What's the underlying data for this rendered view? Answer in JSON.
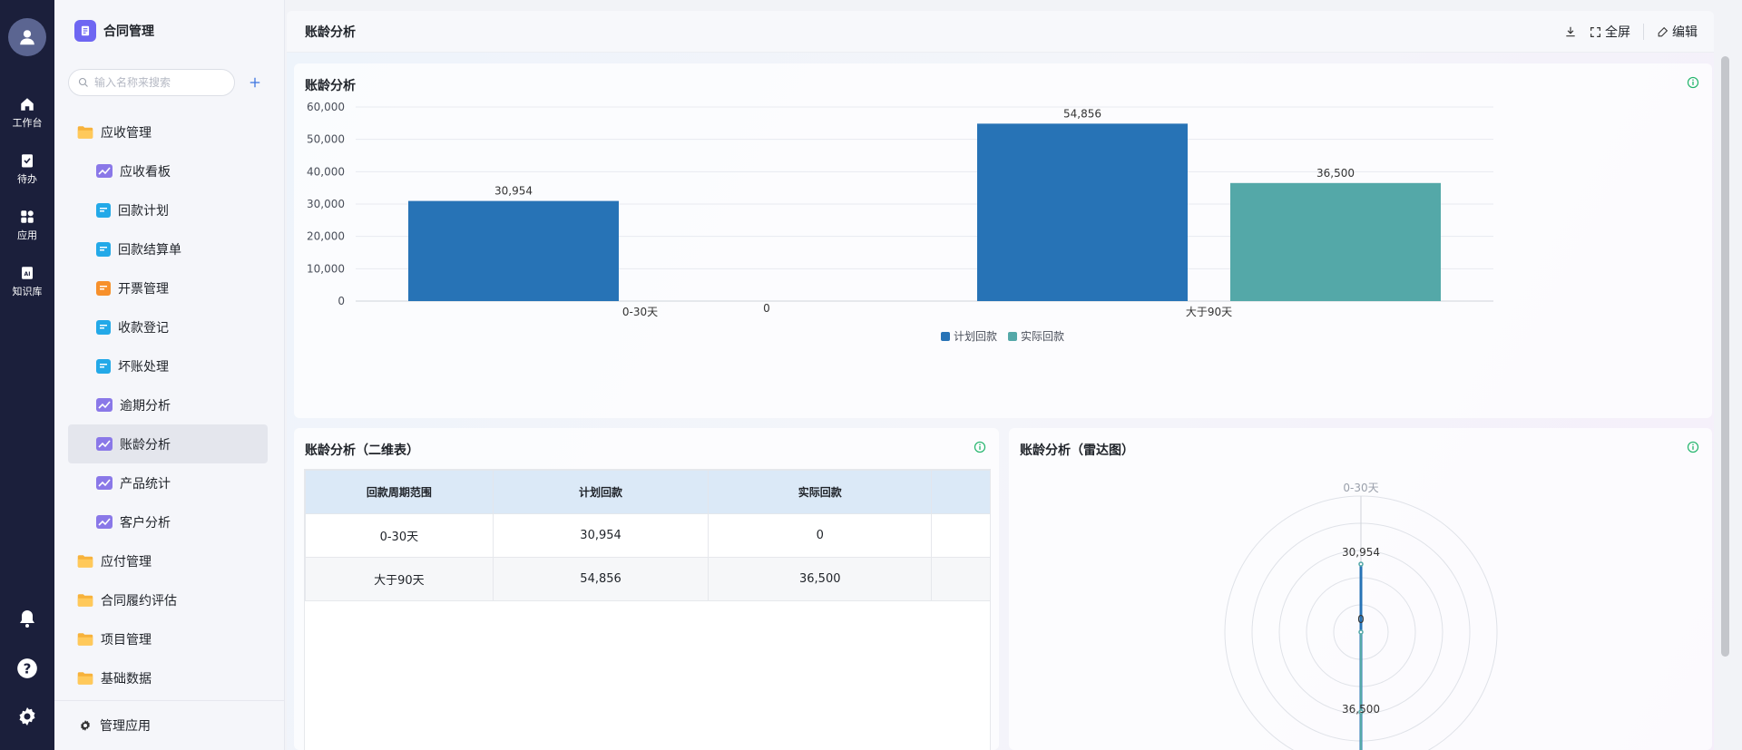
{
  "rail": {
    "items": [
      {
        "label": "工作台",
        "icon": "home-icon"
      },
      {
        "label": "待办",
        "icon": "clipboard-check-icon"
      },
      {
        "label": "应用",
        "icon": "apps-grid-icon"
      },
      {
        "label": "知识库",
        "icon": "ai-book-icon"
      }
    ],
    "bottom_icons": [
      "bell-icon",
      "help-icon",
      "gear-icon"
    ]
  },
  "sidebar": {
    "app_title": "合同管理",
    "search_placeholder": "输入名称来搜索",
    "menu": [
      {
        "type": "folder",
        "label": "应收管理"
      },
      {
        "type": "child",
        "label": "应收看板",
        "icon": "chart"
      },
      {
        "type": "child",
        "label": "回款计划",
        "icon": "form-blue"
      },
      {
        "type": "child",
        "label": "回款结算单",
        "icon": "form-blue"
      },
      {
        "type": "child",
        "label": "开票管理",
        "icon": "form-orange"
      },
      {
        "type": "child",
        "label": "收款登记",
        "icon": "form-blue"
      },
      {
        "type": "child",
        "label": "坏账处理",
        "icon": "form-blue"
      },
      {
        "type": "child",
        "label": "逾期分析",
        "icon": "chart"
      },
      {
        "type": "child",
        "label": "账龄分析",
        "icon": "chart",
        "active": true
      },
      {
        "type": "child",
        "label": "产品统计",
        "icon": "chart"
      },
      {
        "type": "child",
        "label": "客户分析",
        "icon": "chart"
      },
      {
        "type": "folder",
        "label": "应付管理"
      },
      {
        "type": "folder",
        "label": "合同履约评估"
      },
      {
        "type": "folder",
        "label": "项目管理"
      },
      {
        "type": "folder",
        "label": "基础数据"
      }
    ],
    "footer_label": "管理应用"
  },
  "topbar": {
    "title": "账龄分析",
    "fullscreen_label": "全屏",
    "edit_label": "编辑"
  },
  "cards": {
    "bar_title": "账龄分析",
    "table_title": "账龄分析（二维表）",
    "radar_title": "账龄分析（雷达图）"
  },
  "colors": {
    "planned": "#2773b6",
    "actual": "#54a8a8",
    "accent": "#6e66f2",
    "rail": "#1b1f3b",
    "info_green": "#20b46a"
  },
  "chart_data": [
    {
      "type": "bar",
      "title": "账龄分析",
      "categories": [
        "0-30天",
        "大于90天"
      ],
      "series": [
        {
          "name": "计划回款",
          "values": [
            30954,
            54856
          ]
        },
        {
          "name": "实际回款",
          "values": [
            0,
            36500
          ]
        }
      ],
      "ylim": [
        0,
        60000
      ],
      "yticks": [
        "0",
        "10,000",
        "20,000",
        "30,000",
        "40,000",
        "50,000",
        "60,000"
      ],
      "data_labels": [
        "30,954",
        "0",
        "54,856",
        "36,500"
      ],
      "legend": "bottom",
      "grid": true
    },
    {
      "type": "table",
      "title": "账龄分析（二维表）",
      "columns": [
        "回款周期范围",
        "计划回款",
        "实际回款",
        ""
      ],
      "rows": [
        [
          "0-30天",
          "30,954",
          "0",
          ""
        ],
        [
          "大于90天",
          "54,856",
          "36,500",
          ""
        ]
      ]
    },
    {
      "type": "radar",
      "title": "账龄分析（雷达图）",
      "indicators": [
        "0-30天"
      ],
      "labels": [
        "30,954",
        "0",
        "36,500"
      ]
    }
  ]
}
